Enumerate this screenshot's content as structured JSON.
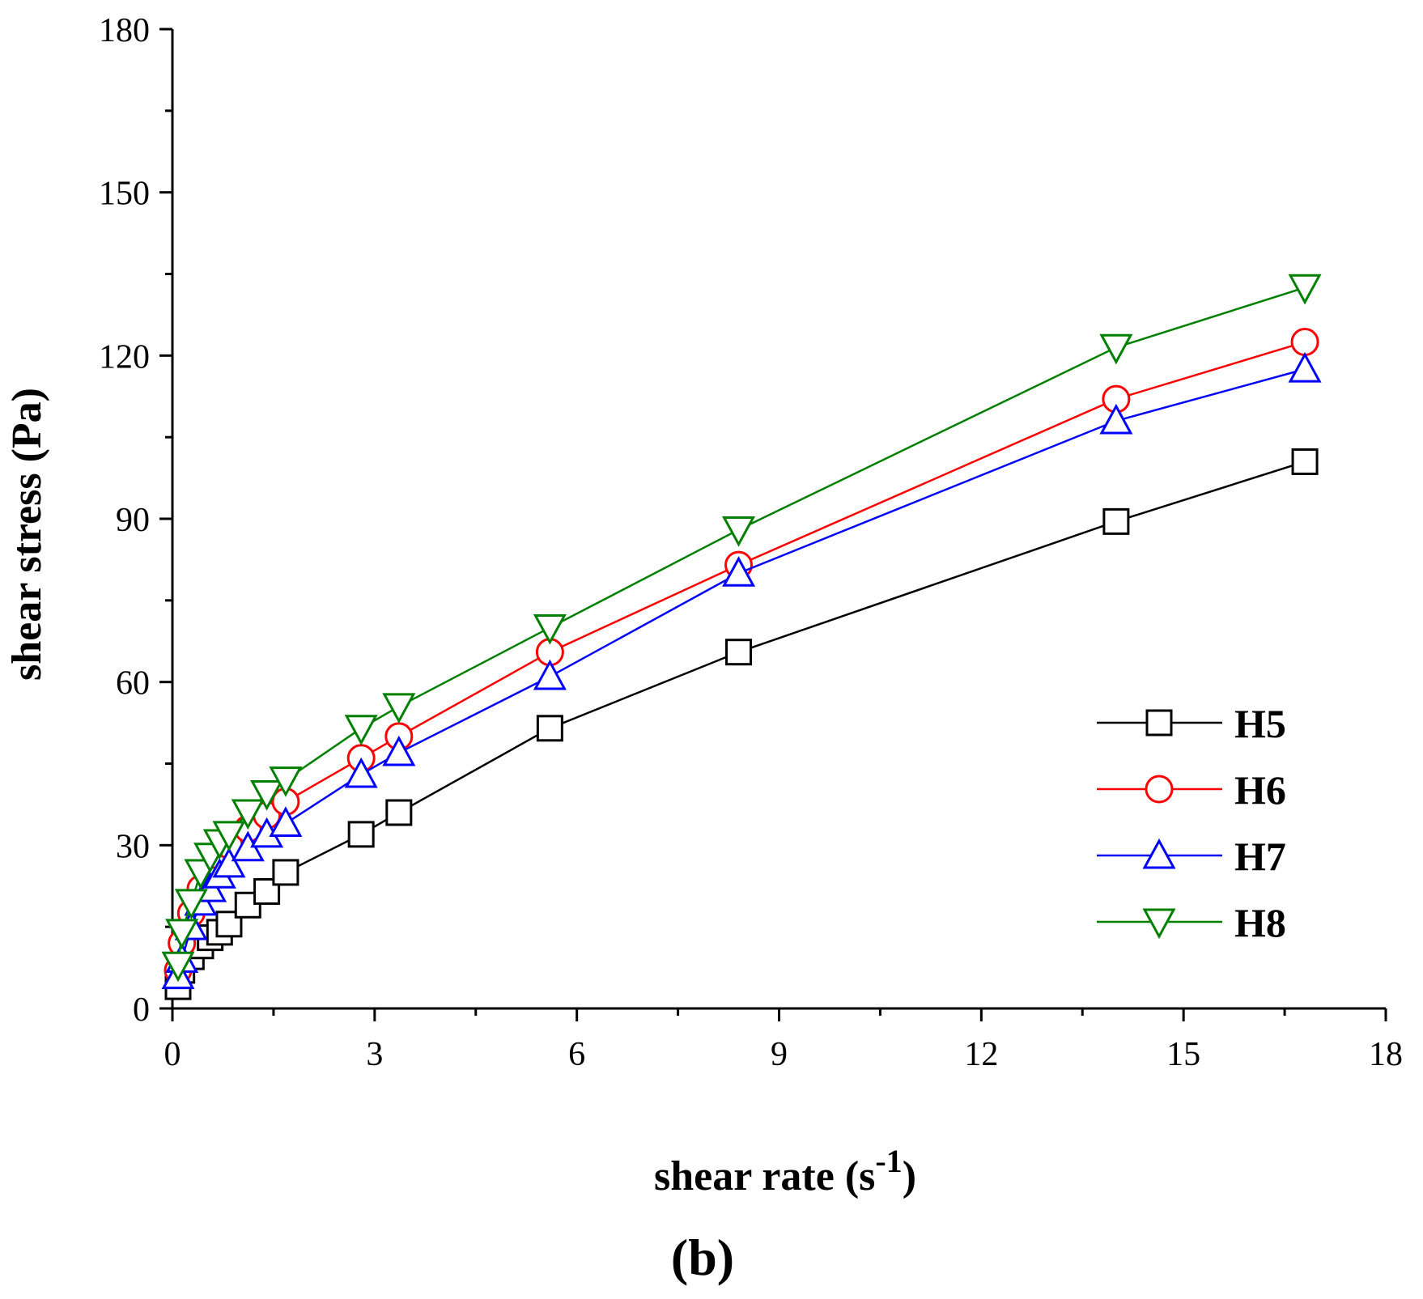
{
  "chart_data": {
    "type": "line",
    "title": "",
    "panel_label": "(b)",
    "xlabel": {
      "text": "shear rate (s",
      "sup": "-1",
      "close": ")"
    },
    "ylabel": "shear stress (Pa)",
    "xlim": [
      0,
      18
    ],
    "ylim": [
      0,
      180
    ],
    "x_ticks": [
      0,
      3,
      6,
      9,
      12,
      15,
      18
    ],
    "y_ticks": [
      0,
      30,
      60,
      90,
      120,
      150,
      180
    ],
    "x_tick_labels": [
      "0",
      "3",
      "6",
      "9",
      "12",
      "15",
      "18"
    ],
    "y_tick_labels": [
      "0",
      "30",
      "60",
      "90",
      "120",
      "150",
      "180"
    ],
    "grid": false,
    "legend_position": "bottom-right",
    "series": [
      {
        "name": "H5",
        "color": "#000000",
        "marker": "square",
        "x": [
          0.084,
          0.14,
          0.28,
          0.42,
          0.56,
          0.7,
          0.84,
          1.12,
          1.4,
          1.68,
          2.8,
          3.36,
          5.6,
          8.4,
          14.0,
          16.8
        ],
        "y": [
          4,
          7,
          9.5,
          11.5,
          13,
          14,
          15.5,
          19,
          21.5,
          25,
          32,
          36,
          51.5,
          65.5,
          89.5,
          100.5
        ]
      },
      {
        "name": "H6",
        "color": "#ff0000",
        "marker": "circle",
        "x": [
          0.084,
          0.14,
          0.28,
          0.42,
          0.56,
          0.7,
          0.84,
          1.12,
          1.4,
          1.68,
          2.8,
          3.36,
          5.6,
          8.4,
          14.0,
          16.8
        ],
        "y": [
          7,
          12,
          17.5,
          22,
          25,
          28,
          30,
          33,
          35.5,
          38,
          46,
          50,
          65.5,
          81.5,
          112,
          122.5
        ]
      },
      {
        "name": "H7",
        "color": "#0000ff",
        "marker": "triangle-up",
        "x": [
          0.084,
          0.14,
          0.28,
          0.42,
          0.56,
          0.7,
          0.84,
          1.12,
          1.4,
          1.68,
          2.8,
          3.36,
          5.6,
          8.4,
          14.0,
          16.8
        ],
        "y": [
          6,
          9,
          15,
          19.5,
          22,
          24.5,
          26.5,
          29.5,
          32,
          34,
          43,
          47,
          61,
          80,
          108,
          117.5
        ]
      },
      {
        "name": "H8",
        "color": "#008000",
        "marker": "triangle-down",
        "x": [
          0.084,
          0.14,
          0.28,
          0.42,
          0.56,
          0.7,
          0.84,
          1.12,
          1.4,
          1.68,
          2.8,
          3.36,
          5.6,
          8.4,
          14.0,
          16.8
        ],
        "y": [
          8,
          14,
          19.5,
          25,
          28,
          30.5,
          32,
          36,
          39.5,
          42,
          51.5,
          55.5,
          70,
          88,
          121.5,
          132.5
        ]
      }
    ]
  }
}
